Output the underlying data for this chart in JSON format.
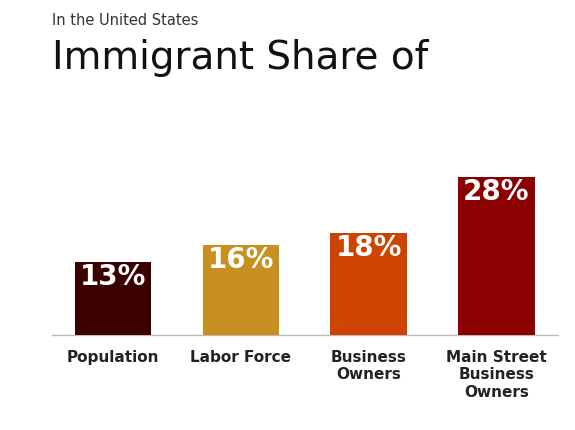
{
  "subtitle": "In the United States",
  "title": "Immigrant Share of",
  "categories": [
    "Population",
    "Labor Force",
    "Business\nOwners",
    "Main Street\nBusiness\nOwners"
  ],
  "values": [
    13,
    16,
    18,
    28
  ],
  "labels": [
    "13%",
    "16%",
    "18%",
    "28%"
  ],
  "bar_colors": [
    "#3B0000",
    "#C89020",
    "#CC4400",
    "#8B0000"
  ],
  "background_color": "#FFFFFF",
  "label_color": "#FFFFFF",
  "subtitle_fontsize": 10.5,
  "title_fontsize": 28,
  "bar_label_fontsize": 20,
  "xlabel_fontsize": 11,
  "ylim": [
    0,
    32
  ]
}
